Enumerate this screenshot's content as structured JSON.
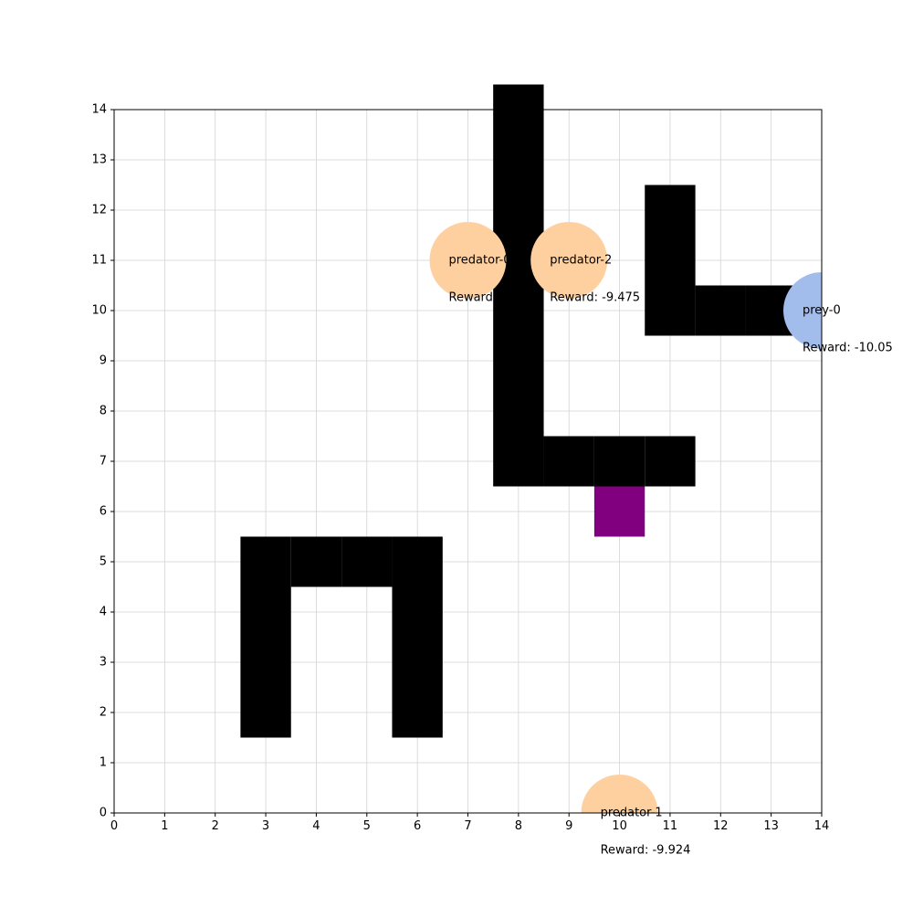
{
  "chart_data": {
    "type": "grid-world",
    "title": "",
    "xlabel": "",
    "ylabel": "",
    "xlim": [
      0,
      14
    ],
    "ylim": [
      0,
      14
    ],
    "grid": true,
    "x_ticks": [
      "0",
      "1",
      "2",
      "3",
      "4",
      "5",
      "6",
      "7",
      "8",
      "9",
      "10",
      "11",
      "12",
      "13",
      "14"
    ],
    "y_ticks": [
      "0",
      "1",
      "2",
      "3",
      "4",
      "5",
      "6",
      "7",
      "8",
      "9",
      "10",
      "11",
      "12",
      "13",
      "14"
    ],
    "colors": {
      "wall": "#000000",
      "goal": "#800080",
      "predator": "#ffd09f",
      "prey": "#a2bdeb",
      "grid": "#d3d3d3"
    },
    "walls": [
      [
        8,
        14
      ],
      [
        8,
        13
      ],
      [
        8,
        12
      ],
      [
        8,
        11
      ],
      [
        8,
        10
      ],
      [
        8,
        9
      ],
      [
        8,
        8
      ],
      [
        8,
        7
      ],
      [
        9,
        7
      ],
      [
        10,
        7
      ],
      [
        11,
        7
      ],
      [
        11,
        12
      ],
      [
        11,
        11
      ],
      [
        11,
        10
      ],
      [
        12,
        10
      ],
      [
        13,
        10
      ],
      [
        3,
        5
      ],
      [
        4,
        5
      ],
      [
        5,
        5
      ],
      [
        6,
        5
      ],
      [
        3,
        4
      ],
      [
        3,
        3
      ],
      [
        3,
        2
      ],
      [
        6,
        4
      ],
      [
        6,
        3
      ],
      [
        6,
        2
      ]
    ],
    "goal_cells": [
      [
        10,
        6
      ]
    ],
    "agents": [
      {
        "name": "predator-0",
        "role": "predator",
        "x": 7,
        "y": 11,
        "reward_text": "Reward: -9.475"
      },
      {
        "name": "predator-2",
        "role": "predator",
        "x": 9,
        "y": 11,
        "reward_text": "Reward: -9.475"
      },
      {
        "name": "prey-0",
        "role": "prey",
        "x": 14,
        "y": 10,
        "reward_text": "Reward: -10.05"
      },
      {
        "name": "predator-1",
        "role": "predator",
        "x": 10,
        "y": 0,
        "reward_text": "Reward: -9.924"
      }
    ]
  }
}
